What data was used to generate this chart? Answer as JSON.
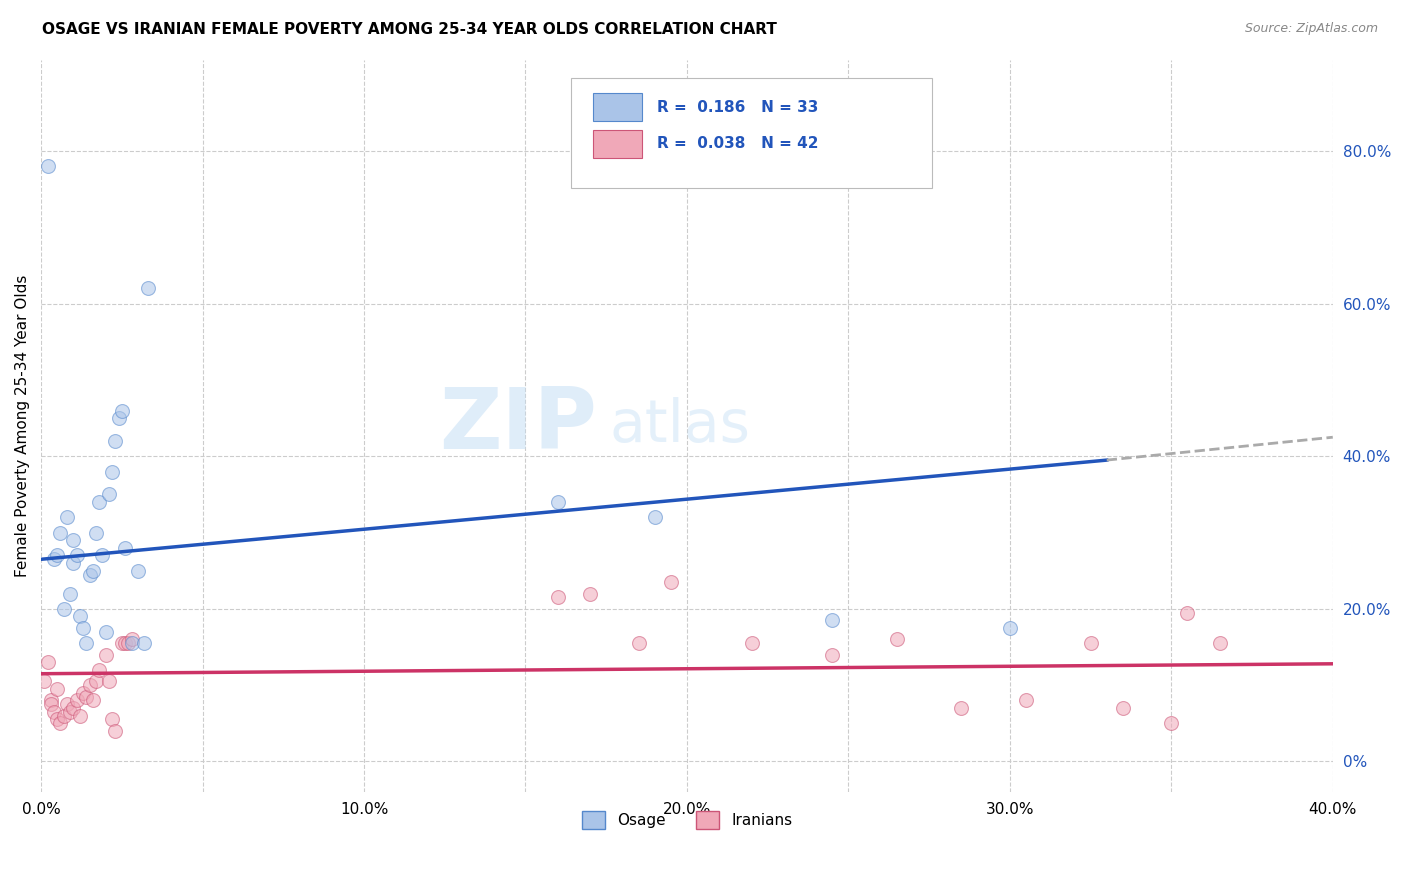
{
  "title": "OSAGE VS IRANIAN FEMALE POVERTY AMONG 25-34 YEAR OLDS CORRELATION CHART",
  "source": "Source: ZipAtlas.com",
  "ylabel": "Female Poverty Among 25-34 Year Olds",
  "xlim": [
    0.0,
    0.4
  ],
  "ylim": [
    -0.04,
    0.92
  ],
  "xtick_labels": [
    "0.0%",
    "",
    "10.0%",
    "",
    "20.0%",
    "",
    "30.0%",
    "",
    "40.0%"
  ],
  "xtick_values": [
    0.0,
    0.05,
    0.1,
    0.15,
    0.2,
    0.25,
    0.3,
    0.35,
    0.4
  ],
  "ytick_values": [
    0.0,
    0.2,
    0.4,
    0.6,
    0.8
  ],
  "ytick_labels_right": [
    "0%",
    "20.0%",
    "40.0%",
    "60.0%",
    "80.0%"
  ],
  "legend_R_values": [
    "0.186",
    "0.038"
  ],
  "legend_N_values": [
    "33",
    "42"
  ],
  "watermark_zip": "ZIP",
  "watermark_atlas": "atlas",
  "background_color": "#ffffff",
  "grid_color": "#cccccc",
  "osage_color": "#aac4e8",
  "osage_edge_color": "#5588cc",
  "iranian_color": "#f0a8b8",
  "iranian_edge_color": "#cc5577",
  "trend_blue_color": "#2255bb",
  "trend_pink_color": "#cc3366",
  "trend_dash_color": "#aaaaaa",
  "osage_x": [
    0.002,
    0.004,
    0.005,
    0.006,
    0.007,
    0.008,
    0.009,
    0.01,
    0.01,
    0.011,
    0.012,
    0.013,
    0.014,
    0.015,
    0.016,
    0.017,
    0.018,
    0.019,
    0.02,
    0.021,
    0.022,
    0.023,
    0.024,
    0.025,
    0.026,
    0.028,
    0.03,
    0.032,
    0.033,
    0.16,
    0.19,
    0.245,
    0.3
  ],
  "osage_y": [
    0.78,
    0.265,
    0.27,
    0.3,
    0.2,
    0.32,
    0.22,
    0.26,
    0.29,
    0.27,
    0.19,
    0.175,
    0.155,
    0.245,
    0.25,
    0.3,
    0.34,
    0.27,
    0.17,
    0.35,
    0.38,
    0.42,
    0.45,
    0.46,
    0.28,
    0.155,
    0.25,
    0.155,
    0.62,
    0.34,
    0.32,
    0.185,
    0.175
  ],
  "iranian_x": [
    0.001,
    0.002,
    0.003,
    0.003,
    0.004,
    0.005,
    0.005,
    0.006,
    0.007,
    0.008,
    0.009,
    0.01,
    0.011,
    0.012,
    0.013,
    0.014,
    0.015,
    0.016,
    0.017,
    0.018,
    0.02,
    0.021,
    0.022,
    0.023,
    0.025,
    0.026,
    0.027,
    0.028,
    0.16,
    0.17,
    0.185,
    0.195,
    0.22,
    0.245,
    0.265,
    0.285,
    0.305,
    0.325,
    0.335,
    0.35,
    0.355,
    0.365
  ],
  "iranian_y": [
    0.105,
    0.13,
    0.08,
    0.075,
    0.065,
    0.095,
    0.055,
    0.05,
    0.06,
    0.075,
    0.065,
    0.07,
    0.08,
    0.06,
    0.09,
    0.085,
    0.1,
    0.08,
    0.105,
    0.12,
    0.14,
    0.105,
    0.055,
    0.04,
    0.155,
    0.155,
    0.155,
    0.16,
    0.215,
    0.22,
    0.155,
    0.235,
    0.155,
    0.14,
    0.16,
    0.07,
    0.08,
    0.155,
    0.07,
    0.05,
    0.195,
    0.155
  ],
  "marker_size": 100,
  "marker_alpha": 0.55
}
